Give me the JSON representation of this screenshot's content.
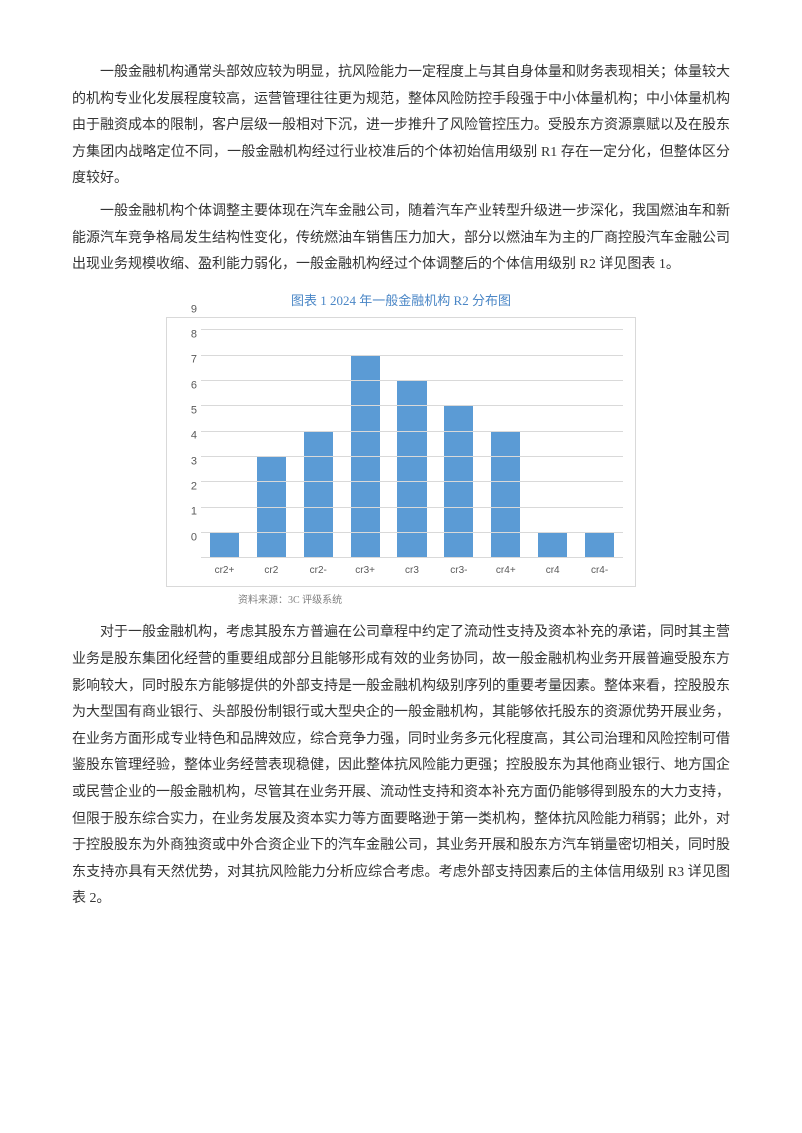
{
  "paragraphs": {
    "p1": "一般金融机构通常头部效应较为明显，抗风险能力一定程度上与其自身体量和财务表现相关；体量较大的机构专业化发展程度较高，运营管理往往更为规范，整体风险防控手段强于中小体量机构；中小体量机构由于融资成本的限制，客户层级一般相对下沉，进一步推升了风险管控压力。受股东方资源禀赋以及在股东方集团内战略定位不同，一般金融机构经过行业校准后的个体初始信用级别 R1 存在一定分化，但整体区分度较好。",
    "p2": "一般金融机构个体调整主要体现在汽车金融公司，随着汽车产业转型升级进一步深化，我国燃油车和新能源汽车竞争格局发生结构性变化，传统燃油车销售压力加大，部分以燃油车为主的厂商控股汽车金融公司出现业务规模收缩、盈利能力弱化，一般金融机构经过个体调整后的个体信用级别 R2 详见图表 1。",
    "p3": "对于一般金融机构，考虑其股东方普遍在公司章程中约定了流动性支持及资本补充的承诺，同时其主营业务是股东集团化经营的重要组成部分且能够形成有效的业务协同，故一般金融机构业务开展普遍受股东方影响较大，同时股东方能够提供的外部支持是一般金融机构级别序列的重要考量因素。整体来看，控股股东为大型国有商业银行、头部股份制银行或大型央企的一般金融机构，其能够依托股东的资源优势开展业务，在业务方面形成专业特色和品牌效应，综合竞争力强，同时业务多元化程度高，其公司治理和风险控制可借鉴股东管理经验，整体业务经营表现稳健，因此整体抗风险能力更强；控股股东为其他商业银行、地方国企或民营企业的一般金融机构，尽管其在业务开展、流动性支持和资本补充方面仍能够得到股东的大力支持，但限于股东综合实力，在业务发展及资本实力等方面要略逊于第一类机构，整体抗风险能力稍弱；此外，对于控股股东为外商独资或中外合资企业下的汽车金融公司，其业务开展和股东方汽车销量密切相关，同时股东支持亦具有天然优势，对其抗风险能力分析应综合考虑。考虑外部支持因素后的主体信用级别 R3 详见图表 2。"
  },
  "chart": {
    "title": "图表 1    2024 年一般金融机构 R2 分布图",
    "source": "资料来源：3C 评级系统",
    "type": "bar",
    "categories": [
      "cr2+",
      "cr2",
      "cr2-",
      "cr3+",
      "cr3",
      "cr3-",
      "cr4+",
      "cr4",
      "cr4-"
    ],
    "values": [
      1,
      4,
      5,
      8,
      7,
      6,
      5,
      1,
      1
    ],
    "ylim": [
      0,
      9
    ],
    "ytick_step": 1,
    "bar_color": "#5b9bd5",
    "grid_color": "#d9d9d9",
    "background_color": "#ffffff",
    "title_color": "#4a86c6",
    "title_fontsize": 13,
    "axis_fontsize": 11
  }
}
